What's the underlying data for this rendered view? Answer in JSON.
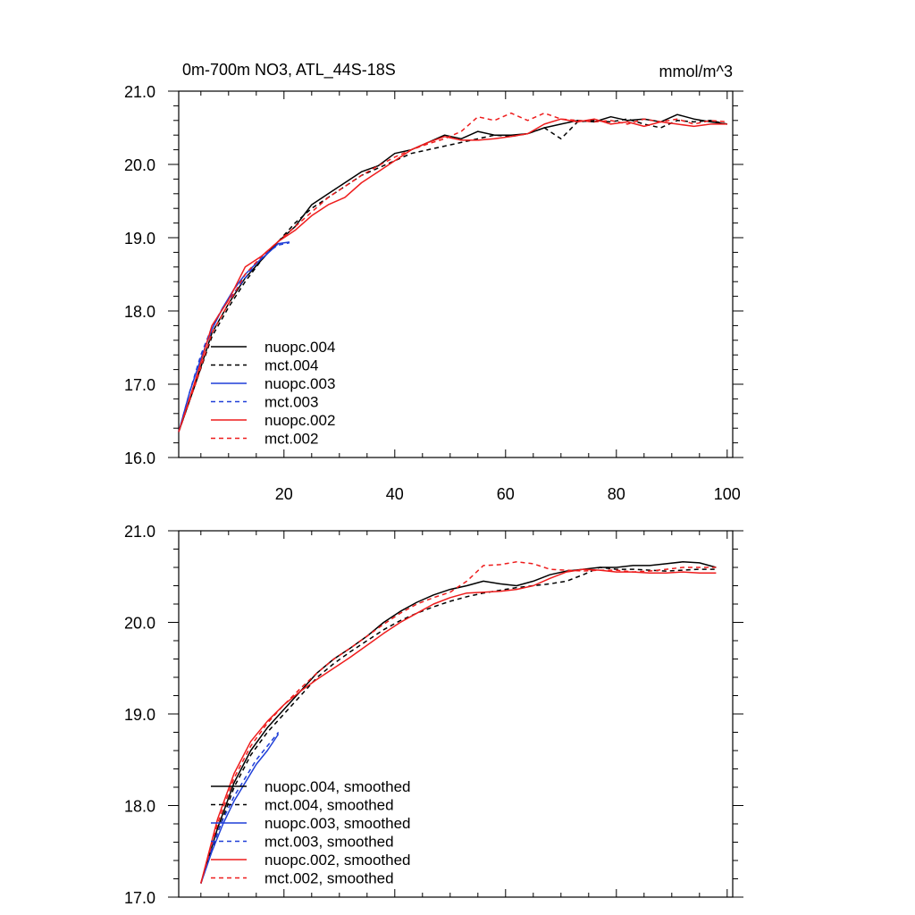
{
  "header": {
    "title": "0m-700m NO3, ATL_44S-18S",
    "units": "mmol/m^3"
  },
  "chart_data": [
    {
      "type": "line",
      "title": "0m-700m NO3, ATL_44S-18S",
      "units": "mmol/m^3",
      "xlim": [
        1,
        101
      ],
      "ylim": [
        16.0,
        21.0
      ],
      "xticks": [
        20,
        40,
        60,
        80,
        100
      ],
      "xtick_labels": [
        "20",
        "40",
        "60",
        "80",
        "100"
      ],
      "yticks": [
        16.0,
        17.0,
        18.0,
        19.0,
        20.0,
        21.0
      ],
      "ytick_labels": [
        "16.0",
        "17.0",
        "18.0",
        "19.0",
        "20.0",
        "21.0"
      ],
      "legend_position": "bottom-left",
      "series": [
        {
          "name": "nuopc.004",
          "color": "#000000",
          "dash": false,
          "x": [
            1,
            4,
            7,
            10,
            13,
            16,
            19,
            22,
            25,
            28,
            31,
            34,
            37,
            40,
            43,
            46,
            49,
            52,
            55,
            58,
            61,
            64,
            67,
            70,
            73,
            76,
            79,
            82,
            85,
            88,
            91,
            94,
            97,
            100
          ],
          "y": [
            16.35,
            17.0,
            17.7,
            18.1,
            18.45,
            18.7,
            18.95,
            19.15,
            19.45,
            19.6,
            19.75,
            19.9,
            19.98,
            20.15,
            20.2,
            20.3,
            20.4,
            20.35,
            20.45,
            20.4,
            20.4,
            20.42,
            20.5,
            20.55,
            20.6,
            20.58,
            20.65,
            20.6,
            20.62,
            20.58,
            20.68,
            20.62,
            20.58,
            20.55
          ]
        },
        {
          "name": "mct.004",
          "color": "#000000",
          "dash": true,
          "x": [
            1,
            4,
            7,
            10,
            13,
            16,
            19,
            22,
            25,
            28,
            31,
            34,
            37,
            40,
            43,
            46,
            49,
            52,
            55,
            58,
            61,
            64,
            67,
            70,
            73,
            76,
            79,
            82,
            85,
            88,
            91,
            94,
            97,
            100
          ],
          "y": [
            16.35,
            17.0,
            17.65,
            18.05,
            18.4,
            18.7,
            18.95,
            19.2,
            19.4,
            19.55,
            19.7,
            19.85,
            19.95,
            20.05,
            20.15,
            20.2,
            20.25,
            20.3,
            20.35,
            20.4,
            20.38,
            20.42,
            20.5,
            20.35,
            20.58,
            20.6,
            20.58,
            20.62,
            20.55,
            20.5,
            20.6,
            20.58,
            20.6,
            20.55
          ]
        },
        {
          "name": "nuopc.003",
          "color": "#1f3fd8",
          "dash": false,
          "x": [
            1,
            3,
            5,
            7,
            9,
            11,
            13,
            15,
            17,
            19,
            21
          ],
          "y": [
            16.35,
            16.9,
            17.35,
            17.75,
            18.05,
            18.3,
            18.5,
            18.65,
            18.78,
            18.92,
            18.94
          ]
        },
        {
          "name": "mct.003",
          "color": "#1f3fd8",
          "dash": true,
          "x": [
            1,
            3,
            5,
            7,
            9,
            11,
            13,
            15,
            17,
            19,
            21
          ],
          "y": [
            16.35,
            16.9,
            17.4,
            17.78,
            18.05,
            18.25,
            18.45,
            18.65,
            18.8,
            18.9,
            18.93
          ]
        },
        {
          "name": "nuopc.002",
          "color": "#ee1c1c",
          "dash": false,
          "x": [
            1,
            4,
            7,
            10,
            13,
            16,
            19,
            22,
            25,
            28,
            31,
            34,
            37,
            40,
            43,
            46,
            49,
            52,
            55,
            58,
            61,
            64,
            67,
            70,
            73,
            76,
            79,
            82,
            85,
            88,
            91,
            94,
            97,
            100
          ],
          "y": [
            16.35,
            17.05,
            17.8,
            18.15,
            18.6,
            18.75,
            18.95,
            19.1,
            19.3,
            19.45,
            19.55,
            19.75,
            19.9,
            20.05,
            20.2,
            20.3,
            20.38,
            20.33,
            20.33,
            20.35,
            20.38,
            20.42,
            20.55,
            20.62,
            20.58,
            20.62,
            20.55,
            20.58,
            20.52,
            20.58,
            20.55,
            20.52,
            20.55,
            20.55
          ]
        },
        {
          "name": "mct.002",
          "color": "#ee1c1c",
          "dash": true,
          "x": [
            1,
            4,
            7,
            10,
            13,
            16,
            19,
            22,
            25,
            28,
            31,
            34,
            37,
            40,
            43,
            46,
            49,
            52,
            55,
            58,
            61,
            64,
            67,
            70,
            73,
            76,
            79,
            82,
            85,
            88,
            91,
            94,
            97,
            100
          ],
          "y": [
            16.35,
            17.0,
            17.7,
            18.1,
            18.5,
            18.75,
            18.95,
            19.15,
            19.35,
            19.55,
            19.7,
            19.85,
            19.98,
            20.1,
            20.2,
            20.28,
            20.35,
            20.45,
            20.65,
            20.6,
            20.7,
            20.6,
            20.7,
            20.62,
            20.6,
            20.58,
            20.6,
            20.55,
            20.62,
            20.58,
            20.62,
            20.55,
            20.6,
            20.58
          ]
        }
      ]
    },
    {
      "type": "line",
      "xlim": [
        1,
        101
      ],
      "ylim": [
        17.0,
        21.0
      ],
      "xticks": [
        20,
        40,
        60,
        80,
        100
      ],
      "yticks": [
        17.0,
        18.0,
        19.0,
        20.0,
        21.0
      ],
      "ytick_labels": [
        "17.0",
        "18.0",
        "19.0",
        "20.0",
        "21.0"
      ],
      "legend_position": "bottom-left",
      "series": [
        {
          "name": "nuopc.004, smoothed",
          "color": "#000000",
          "dash": false,
          "x": [
            5,
            8,
            11,
            14,
            17,
            20,
            23,
            26,
            29,
            32,
            35,
            38,
            41,
            44,
            47,
            50,
            53,
            56,
            59,
            62,
            65,
            68,
            71,
            74,
            77,
            80,
            83,
            86,
            89,
            92,
            95,
            98
          ],
          "y": [
            17.15,
            17.75,
            18.25,
            18.6,
            18.85,
            19.05,
            19.25,
            19.45,
            19.6,
            19.72,
            19.85,
            20.0,
            20.12,
            20.22,
            20.3,
            20.36,
            20.4,
            20.45,
            20.42,
            20.4,
            20.45,
            20.52,
            20.56,
            20.58,
            20.6,
            20.6,
            20.62,
            20.62,
            20.64,
            20.66,
            20.65,
            20.6
          ]
        },
        {
          "name": "mct.004, smoothed",
          "color": "#000000",
          "dash": true,
          "x": [
            5,
            8,
            11,
            14,
            17,
            20,
            23,
            26,
            29,
            32,
            35,
            38,
            41,
            44,
            47,
            50,
            53,
            56,
            59,
            62,
            65,
            68,
            71,
            74,
            77,
            80,
            83,
            86,
            89,
            92,
            95,
            98
          ],
          "y": [
            17.15,
            17.7,
            18.2,
            18.55,
            18.8,
            19.0,
            19.2,
            19.4,
            19.55,
            19.68,
            19.8,
            19.92,
            20.02,
            20.1,
            20.17,
            20.23,
            20.28,
            20.32,
            20.35,
            20.38,
            20.4,
            20.42,
            20.45,
            20.52,
            20.6,
            20.58,
            20.58,
            20.57,
            20.56,
            20.57,
            20.58,
            20.58
          ]
        },
        {
          "name": "nuopc.003, smoothed",
          "color": "#1f3fd8",
          "dash": false,
          "x": [
            5,
            7,
            9,
            11,
            13,
            15,
            17,
            19
          ],
          "y": [
            17.15,
            17.5,
            17.8,
            18.05,
            18.25,
            18.45,
            18.6,
            18.78
          ]
        },
        {
          "name": "mct.003, smoothed",
          "color": "#1f3fd8",
          "dash": true,
          "x": [
            5,
            7,
            9,
            11,
            13,
            15,
            17,
            19
          ],
          "y": [
            17.15,
            17.55,
            17.85,
            18.1,
            18.3,
            18.5,
            18.65,
            18.8
          ]
        },
        {
          "name": "nuopc.002, smoothed",
          "color": "#ee1c1c",
          "dash": false,
          "x": [
            5,
            8,
            11,
            14,
            17,
            20,
            23,
            26,
            29,
            32,
            35,
            38,
            41,
            44,
            47,
            50,
            53,
            56,
            59,
            62,
            65,
            68,
            71,
            74,
            77,
            80,
            83,
            86,
            89,
            92,
            95,
            98
          ],
          "y": [
            17.15,
            17.85,
            18.35,
            18.7,
            18.92,
            19.1,
            19.25,
            19.38,
            19.5,
            19.62,
            19.75,
            19.88,
            20.0,
            20.1,
            20.2,
            20.27,
            20.32,
            20.33,
            20.34,
            20.36,
            20.4,
            20.48,
            20.55,
            20.58,
            20.57,
            20.55,
            20.55,
            20.54,
            20.54,
            20.55,
            20.54,
            20.54
          ]
        },
        {
          "name": "mct.002, smoothed",
          "color": "#ee1c1c",
          "dash": true,
          "x": [
            5,
            8,
            11,
            14,
            17,
            20,
            23,
            26,
            29,
            32,
            35,
            38,
            41,
            44,
            47,
            50,
            53,
            56,
            59,
            62,
            65,
            68,
            71,
            74,
            77,
            80,
            83,
            86,
            89,
            92,
            95,
            98
          ],
          "y": [
            17.15,
            17.8,
            18.3,
            18.65,
            18.9,
            19.1,
            19.28,
            19.45,
            19.6,
            19.72,
            19.85,
            19.98,
            20.1,
            20.2,
            20.27,
            20.33,
            20.45,
            20.62,
            20.63,
            20.66,
            20.64,
            20.58,
            20.57,
            20.56,
            20.57,
            20.57,
            20.55,
            20.56,
            20.58,
            20.6,
            20.6,
            20.6
          ]
        }
      ]
    }
  ]
}
